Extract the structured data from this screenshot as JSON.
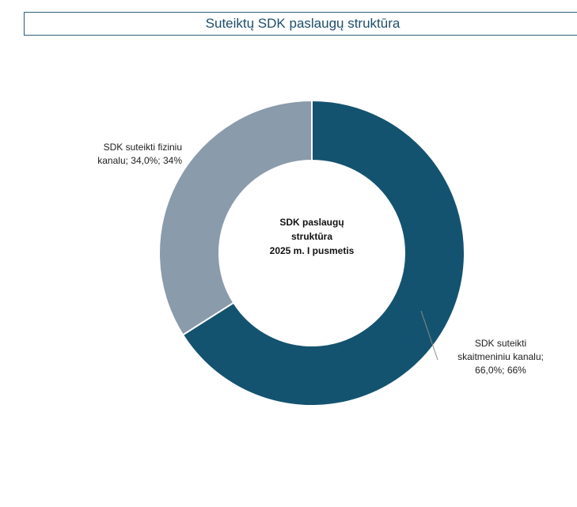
{
  "chart_data": {
    "type": "pie",
    "style": "donut",
    "title": "Suteiktų SDK paslaugų struktūra",
    "center_label": [
      "SDK paslaugų",
      "struktūra",
      "2025 m. I pusmetis"
    ],
    "slices": [
      {
        "name": "SDK suteikti skaitmeniniu kanalu",
        "value": 66.0,
        "label_lines": [
          "SDK suteikti",
          "skaitmeniniu kanalu;",
          "66,0%; 66%"
        ],
        "color": "#14536f"
      },
      {
        "name": "SDK suteikti fiziniu kanalu",
        "value": 34.0,
        "label_lines": [
          "SDK suteikti fiziniu",
          "kanalu; 34,0%; 34%"
        ],
        "color": "#8a9bab"
      }
    ]
  },
  "colors": {
    "title_text": "#1d4e6b",
    "title_border": "#2e5f7a",
    "leader_line": "#8a8a8a"
  }
}
